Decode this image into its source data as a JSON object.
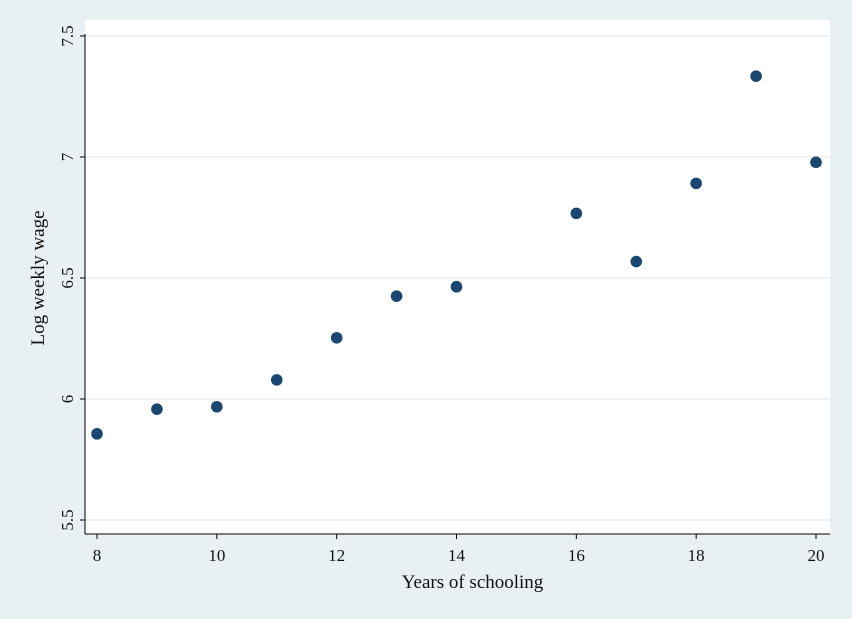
{
  "chart_data": {
    "type": "scatter",
    "title": "",
    "xlabel": "Years of schooling",
    "ylabel": "Log weekly wage",
    "x": [
      8,
      9,
      10,
      11,
      12,
      13,
      14,
      16,
      17,
      18,
      19,
      20
    ],
    "y": [
      5.856,
      5.958,
      5.968,
      6.079,
      6.253,
      6.425,
      6.464,
      6.767,
      6.568,
      6.891,
      7.334,
      6.978
    ],
    "xlim": [
      8,
      20
    ],
    "ylim": [
      5.5,
      7.5
    ],
    "x_ticks": [
      8,
      10,
      12,
      14,
      16,
      18,
      20
    ],
    "y_ticks": [
      5.5,
      6,
      6.5,
      7,
      7.5
    ],
    "x_tick_labels": [
      "8",
      "10",
      "12",
      "14",
      "16",
      "18",
      "20"
    ],
    "y_tick_labels": [
      "5.5",
      "6",
      "6.5",
      "7",
      "7.5"
    ],
    "grid": "horizontal",
    "colors": {
      "background": "#e9f0f3",
      "plot_background": "#ffffff",
      "marker": "#1a4670",
      "gridline": "#e9eef1",
      "axis": "#000000"
    }
  }
}
